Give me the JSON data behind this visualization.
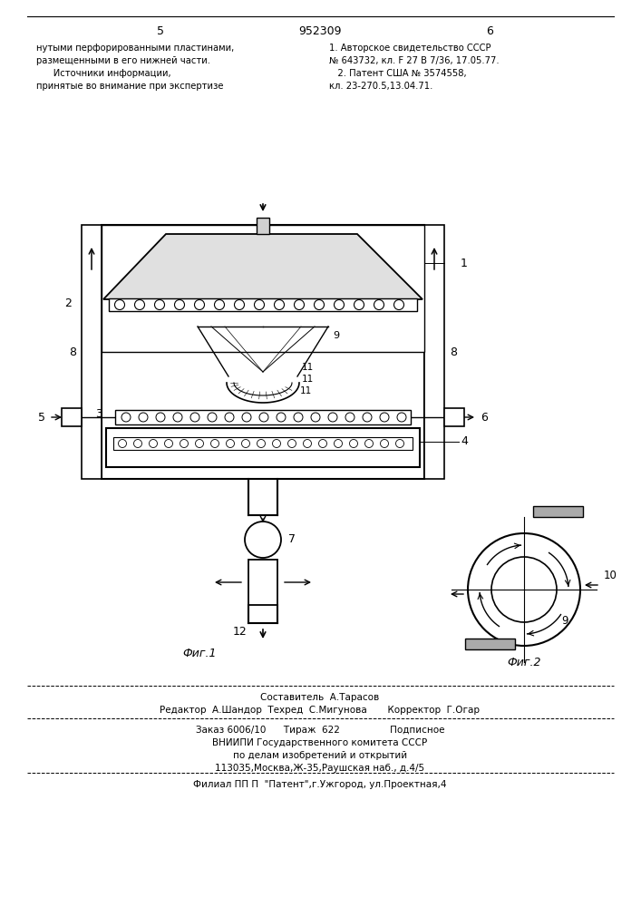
{
  "bg_color": "#ffffff",
  "page_number_left": "5",
  "page_number_center": "952309",
  "page_number_right": "6",
  "top_text_left": [
    "нутыми перфорированными пластинами,",
    "размещенными в его нижней части.",
    "      Источники информации,",
    "принятые во внимание при экспертизе"
  ],
  "top_text_right": [
    "1. Авторское свидетельство СССР",
    "№ 643732, кл. F 27 В 7/36, 17.05.77.",
    "   2. Патент США № 3574558,",
    "кл. 23-270.5,13.04.71."
  ],
  "fig1_label": "Фиг.1",
  "fig2_label": "Фиг.2",
  "bottom_line1": "Составитель  А.Тарасов",
  "bottom_line2": "Редактор  А.Шандор  Техред  С.Мигунова       Корректор  Г.Огар",
  "bottom_line3": "Заказ 6006/10      Тираж  622                 Подписное",
  "bottom_line4": "ВНИИПИ Государственного комитета СССР",
  "bottom_line5": "по делам изобретений и открытий",
  "bottom_line6": "113035,Москва,Ж-35,Раушская наб., д.4/5",
  "bottom_line7": "Филиал ПП П  \"Патент\",г.Ужгород, ул.Проектная,4"
}
